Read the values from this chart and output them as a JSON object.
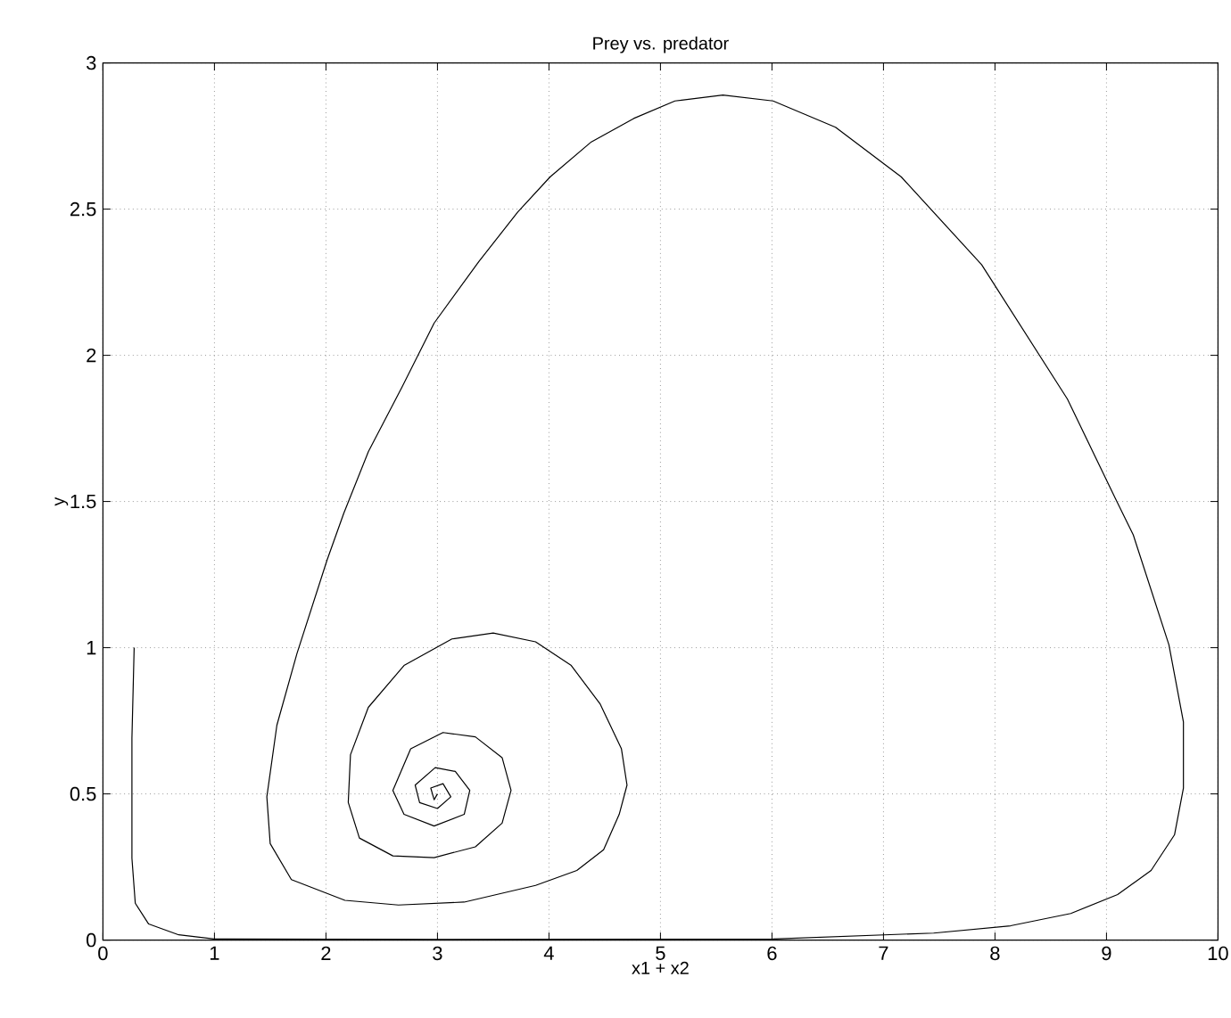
{
  "chart_data": {
    "type": "line",
    "title": "Prey vs. predator",
    "xlabel": "x1 + x2",
    "ylabel": "y",
    "xlim": [
      0,
      10
    ],
    "ylim": [
      0,
      3
    ],
    "xticks": [
      0,
      1,
      2,
      3,
      4,
      5,
      6,
      7,
      8,
      9,
      10
    ],
    "yticks": [
      0,
      0.5,
      1,
      1.5,
      2,
      2.5,
      3
    ],
    "grid": true,
    "marker": "none",
    "line_style": "solid",
    "series": [
      {
        "color": "#000000",
        "x": [
          0.28,
          0.26,
          0.26,
          0.29,
          0.41,
          0.68,
          1.0,
          3.0,
          5.0,
          6.01,
          7.45,
          8.14,
          8.68,
          9.1,
          9.4,
          9.61,
          9.69,
          9.69,
          9.56,
          9.24,
          9.08,
          8.65,
          7.88,
          7.16,
          6.57,
          6.01,
          5.56,
          5.13,
          4.76,
          4.38,
          4.01,
          3.72,
          3.37,
          2.97,
          2.68,
          2.38,
          2.16,
          2.01,
          1.74,
          1.56,
          1.47,
          1.5,
          1.69,
          2.17,
          2.65,
          3.24,
          3.88,
          4.25,
          4.49,
          4.63,
          4.7,
          4.65,
          4.46,
          4.2,
          3.88,
          3.5,
          3.13,
          2.7,
          2.38,
          2.22,
          2.2,
          2.3,
          2.6,
          2.97,
          3.34,
          3.58,
          3.66,
          3.58,
          3.34,
          3.05,
          2.76,
          2.6,
          2.7,
          2.97,
          3.24,
          3.29,
          3.16,
          2.98,
          2.8,
          2.84,
          3.0,
          3.12,
          3.05,
          2.94,
          2.97,
          3.0
        ],
        "values": [
          1.0,
          0.69,
          0.28,
          0.126,
          0.055,
          0.018,
          0.004,
          0.002,
          0.003,
          0.004,
          0.024,
          0.049,
          0.091,
          0.156,
          0.238,
          0.36,
          0.52,
          0.746,
          1.01,
          1.386,
          1.51,
          1.85,
          2.31,
          2.61,
          2.78,
          2.87,
          2.89,
          2.87,
          2.81,
          2.73,
          2.61,
          2.49,
          2.32,
          2.11,
          1.89,
          1.67,
          1.46,
          1.3,
          0.98,
          0.735,
          0.49,
          0.33,
          0.207,
          0.136,
          0.12,
          0.13,
          0.187,
          0.238,
          0.309,
          0.43,
          0.53,
          0.654,
          0.807,
          0.939,
          1.02,
          1.05,
          1.03,
          0.939,
          0.796,
          0.634,
          0.471,
          0.349,
          0.288,
          0.282,
          0.319,
          0.4,
          0.512,
          0.624,
          0.695,
          0.71,
          0.654,
          0.512,
          0.43,
          0.39,
          0.43,
          0.512,
          0.577,
          0.59,
          0.53,
          0.47,
          0.45,
          0.49,
          0.535,
          0.52,
          0.48,
          0.5
        ]
      }
    ]
  }
}
